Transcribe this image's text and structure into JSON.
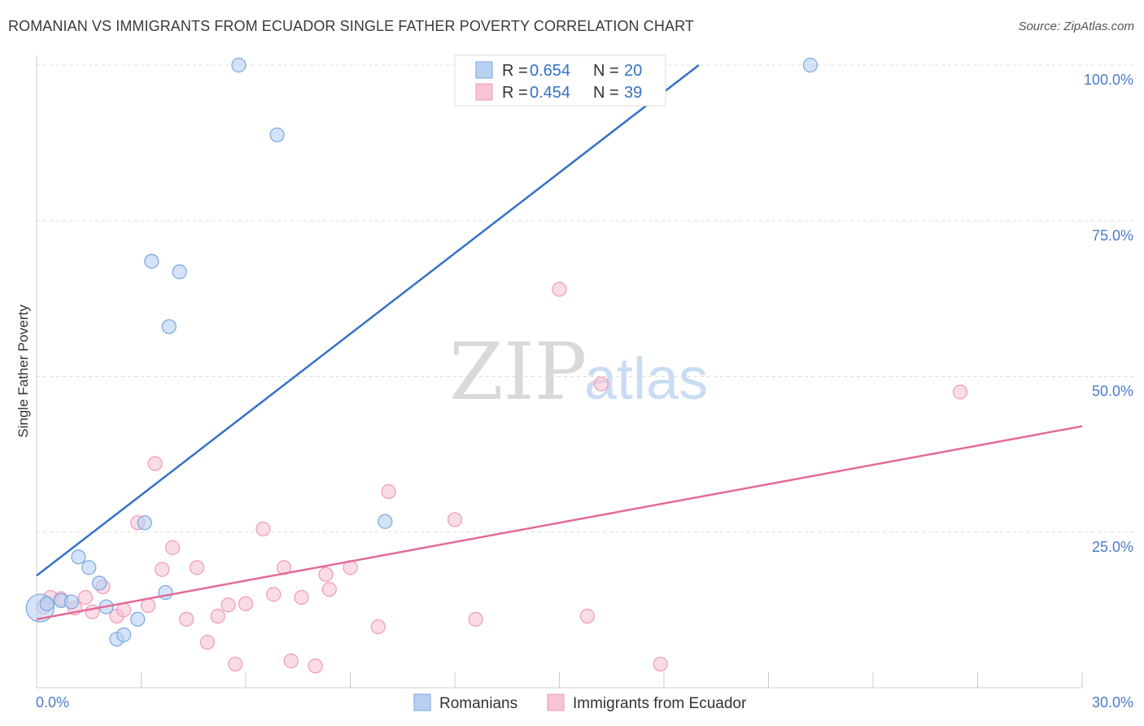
{
  "header": {
    "title": "ROMANIAN VS IMMIGRANTS FROM ECUADOR SINGLE FATHER POVERTY CORRELATION CHART",
    "source": "Source: ZipAtlas.com"
  },
  "watermark": {
    "zip": "ZIP",
    "atlas": "atlas"
  },
  "colors": {
    "blue": "#3571c5",
    "blue_fill": "#b8d0f1",
    "blue_stroke": "#7aa6e0",
    "pink": "#e36a97",
    "pink_fill": "#f7c4d5",
    "pink_stroke": "#ef9ab8",
    "grid": "#dddddd",
    "axis_text": "#4a7cc9"
  },
  "legend": {
    "rows": [
      {
        "r_label": "R = ",
        "r_value": "0.654",
        "n_label": "N = ",
        "n_value": "20"
      },
      {
        "r_label": "R = ",
        "r_value": "0.454",
        "n_label": "N = ",
        "n_value": "39"
      }
    ]
  },
  "bottom_legend": {
    "series1": "Romanians",
    "series2": "Immigrants from Ecuador"
  },
  "chart_data": {
    "type": "scatter",
    "title": "ROMANIAN VS IMMIGRANTS FROM ECUADOR SINGLE FATHER POVERTY CORRELATION CHART",
    "xlabel": "",
    "ylabel": "Single Father Poverty",
    "xlim": [
      0,
      30
    ],
    "ylim": [
      0,
      100
    ],
    "x_tick_labels": [
      "0.0%",
      "30.0%"
    ],
    "y_ticks": [
      25,
      50,
      75,
      100
    ],
    "y_tick_labels": [
      "25.0%",
      "50.0%",
      "75.0%",
      "100.0%"
    ],
    "grid": true,
    "legend_position": "top-center",
    "series": [
      {
        "name": "Romanians",
        "r": 0.654,
        "n": 20,
        "trend": {
          "x": [
            0,
            19.0
          ],
          "y": [
            18.0,
            100.0
          ]
        },
        "points": [
          {
            "x": 0.1,
            "y": 12.8,
            "big": true
          },
          {
            "x": 0.3,
            "y": 13.5
          },
          {
            "x": 0.7,
            "y": 14.0
          },
          {
            "x": 1.0,
            "y": 13.8
          },
          {
            "x": 1.2,
            "y": 21.0
          },
          {
            "x": 1.5,
            "y": 19.3
          },
          {
            "x": 1.8,
            "y": 16.8
          },
          {
            "x": 2.0,
            "y": 13.0
          },
          {
            "x": 2.3,
            "y": 7.8
          },
          {
            "x": 2.5,
            "y": 8.5
          },
          {
            "x": 2.9,
            "y": 11.0
          },
          {
            "x": 3.1,
            "y": 26.5
          },
          {
            "x": 3.3,
            "y": 68.5
          },
          {
            "x": 3.7,
            "y": 15.3
          },
          {
            "x": 3.8,
            "y": 58.0
          },
          {
            "x": 4.1,
            "y": 66.8
          },
          {
            "x": 5.8,
            "y": 100.0
          },
          {
            "x": 6.9,
            "y": 88.8
          },
          {
            "x": 10.0,
            "y": 26.7
          },
          {
            "x": 22.2,
            "y": 100.0
          }
        ]
      },
      {
        "name": "Immigrants from Ecuador",
        "r": 0.454,
        "n": 39,
        "trend": {
          "x": [
            0,
            30.0
          ],
          "y": [
            11.0,
            42.0
          ]
        },
        "points": [
          {
            "x": 0.2,
            "y": 13.0
          },
          {
            "x": 0.4,
            "y": 14.5
          },
          {
            "x": 0.7,
            "y": 14.3
          },
          {
            "x": 1.1,
            "y": 12.8
          },
          {
            "x": 1.4,
            "y": 14.5
          },
          {
            "x": 1.6,
            "y": 12.2
          },
          {
            "x": 1.9,
            "y": 16.2
          },
          {
            "x": 2.3,
            "y": 11.5
          },
          {
            "x": 2.5,
            "y": 12.5
          },
          {
            "x": 2.9,
            "y": 26.5
          },
          {
            "x": 3.2,
            "y": 13.2
          },
          {
            "x": 3.4,
            "y": 36.0
          },
          {
            "x": 3.6,
            "y": 19.0
          },
          {
            "x": 3.9,
            "y": 22.5
          },
          {
            "x": 4.3,
            "y": 11.0
          },
          {
            "x": 4.6,
            "y": 19.3
          },
          {
            "x": 4.9,
            "y": 7.3
          },
          {
            "x": 5.2,
            "y": 11.5
          },
          {
            "x": 5.5,
            "y": 13.3
          },
          {
            "x": 5.7,
            "y": 3.8
          },
          {
            "x": 6.0,
            "y": 13.5
          },
          {
            "x": 6.5,
            "y": 25.5
          },
          {
            "x": 6.8,
            "y": 15.0
          },
          {
            "x": 7.1,
            "y": 19.3
          },
          {
            "x": 7.3,
            "y": 4.3
          },
          {
            "x": 7.6,
            "y": 14.5
          },
          {
            "x": 8.0,
            "y": 3.5
          },
          {
            "x": 8.3,
            "y": 18.2
          },
          {
            "x": 8.4,
            "y": 15.8
          },
          {
            "x": 9.0,
            "y": 19.3
          },
          {
            "x": 9.8,
            "y": 9.8
          },
          {
            "x": 10.1,
            "y": 31.5
          },
          {
            "x": 12.0,
            "y": 27.0
          },
          {
            "x": 12.6,
            "y": 11.0
          },
          {
            "x": 15.0,
            "y": 64.0
          },
          {
            "x": 15.8,
            "y": 11.5
          },
          {
            "x": 16.2,
            "y": 48.8
          },
          {
            "x": 17.9,
            "y": 3.8
          },
          {
            "x": 26.5,
            "y": 47.5
          }
        ]
      }
    ]
  }
}
